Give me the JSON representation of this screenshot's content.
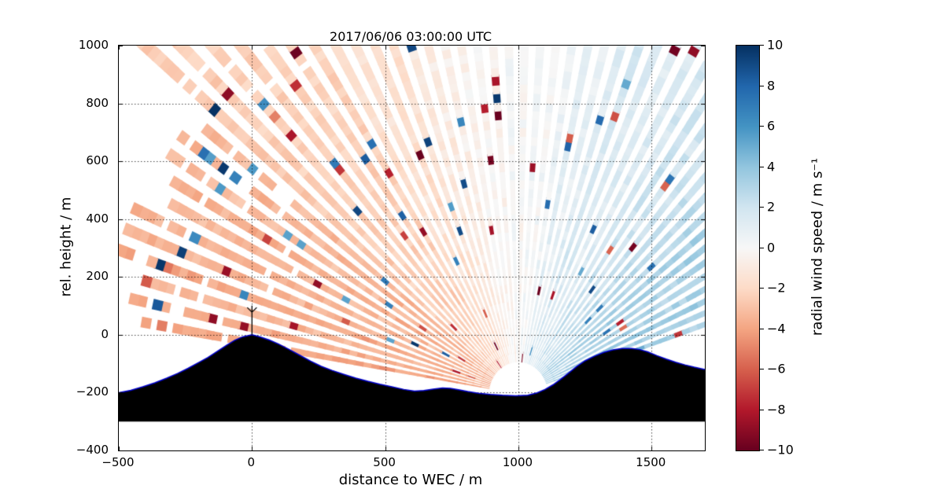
{
  "figure": {
    "title": "2017/06/06 03:00:00 UTC",
    "xlabel": "distance to WEC / m",
    "ylabel": "rel. height / m",
    "colorbar_label": "radial wind speed / m s⁻¹"
  },
  "chart_data": {
    "type": "heatmap",
    "title": "2017/06/06 03:00:00 UTC",
    "xlabel": "distance to WEC / m",
    "ylabel": "rel. height / m",
    "xlim": [
      -500,
      1700
    ],
    "ylim": [
      -400,
      1000
    ],
    "xticks": [
      -500,
      0,
      500,
      1000,
      1500
    ],
    "yticks": [
      -400,
      -200,
      0,
      200,
      400,
      600,
      800,
      1000
    ],
    "grid": true,
    "colorbar": {
      "label": "radial wind speed / m s⁻¹",
      "vmin": -10,
      "vmax": 10,
      "ticks": [
        10,
        8,
        6,
        4,
        2,
        0,
        -2,
        -4,
        -6,
        -8,
        -10
      ],
      "colormap": "RdBu",
      "stops": [
        [
          -10,
          "#67001f"
        ],
        [
          -8,
          "#b2182b"
        ],
        [
          -6,
          "#d6604d"
        ],
        [
          -4,
          "#f4a582"
        ],
        [
          -2,
          "#fddbc7"
        ],
        [
          0,
          "#f7f7f7"
        ],
        [
          2,
          "#d1e5f0"
        ],
        [
          4,
          "#92c5de"
        ],
        [
          6,
          "#4393c3"
        ],
        [
          8,
          "#2166ac"
        ],
        [
          10,
          "#053061"
        ]
      ]
    },
    "scan": {
      "description": "Lidar RHI fan of radial wind speed; red (negative, toward lidar) on upwind left side, blue (positive) on downwind right side, speckle noise at far ranges",
      "origin": [
        1000,
        -205
      ],
      "elev_start_deg": 170,
      "elev_end_deg": 19,
      "n_rays": 55,
      "beam_halfwidth_deg": 0.75,
      "range_min": 110,
      "range_max": 2150,
      "range_max_left": 1520,
      "left_angle_threshold_deg": 140,
      "gate_length": 30,
      "wind_speed": 3.8,
      "gate_noise": 0.7,
      "ray_noise": 0.8,
      "speckle_base_prob": 0.03,
      "speckle_range_prob": 0.1,
      "speckle_min": 5,
      "speckle_max": 10,
      "dropout_start": 0.6,
      "dropout_rate": 0.85,
      "seed": 7
    },
    "terrain": {
      "fill": "#000000",
      "edge": "#0000cc",
      "base": -300,
      "profile": [
        [
          -500,
          -200
        ],
        [
          -455,
          -192
        ],
        [
          -410,
          -180
        ],
        [
          -365,
          -166
        ],
        [
          -320,
          -150
        ],
        [
          -280,
          -134
        ],
        [
          -240,
          -116
        ],
        [
          -200,
          -96
        ],
        [
          -165,
          -78
        ],
        [
          -130,
          -57
        ],
        [
          -95,
          -36
        ],
        [
          -65,
          -19
        ],
        [
          -35,
          -7
        ],
        [
          0,
          0
        ],
        [
          30,
          -7
        ],
        [
          65,
          -18
        ],
        [
          100,
          -32
        ],
        [
          140,
          -51
        ],
        [
          180,
          -71
        ],
        [
          220,
          -91
        ],
        [
          260,
          -109
        ],
        [
          300,
          -123
        ],
        [
          345,
          -137
        ],
        [
          390,
          -150
        ],
        [
          435,
          -161
        ],
        [
          480,
          -171
        ],
        [
          525,
          -180
        ],
        [
          570,
          -189
        ],
        [
          610,
          -195
        ],
        [
          645,
          -193
        ],
        [
          680,
          -188
        ],
        [
          715,
          -184
        ],
        [
          745,
          -185
        ],
        [
          775,
          -190
        ],
        [
          810,
          -196
        ],
        [
          850,
          -202
        ],
        [
          895,
          -206
        ],
        [
          940,
          -209
        ],
        [
          990,
          -211
        ],
        [
          1035,
          -209
        ],
        [
          1070,
          -201
        ],
        [
          1100,
          -189
        ],
        [
          1130,
          -173
        ],
        [
          1160,
          -153
        ],
        [
          1190,
          -131
        ],
        [
          1220,
          -109
        ],
        [
          1250,
          -90
        ],
        [
          1285,
          -74
        ],
        [
          1320,
          -61
        ],
        [
          1355,
          -52
        ],
        [
          1390,
          -47
        ],
        [
          1425,
          -47
        ],
        [
          1455,
          -51
        ],
        [
          1485,
          -59
        ],
        [
          1520,
          -72
        ],
        [
          1555,
          -84
        ],
        [
          1590,
          -95
        ],
        [
          1625,
          -104
        ],
        [
          1660,
          -112
        ],
        [
          1700,
          -120
        ]
      ]
    },
    "turbine": {
      "x": 0,
      "base_height": 0,
      "hub_height": 78,
      "rotor_radius": 42,
      "blade_angles_deg": [
        45,
        135,
        90
      ]
    }
  }
}
